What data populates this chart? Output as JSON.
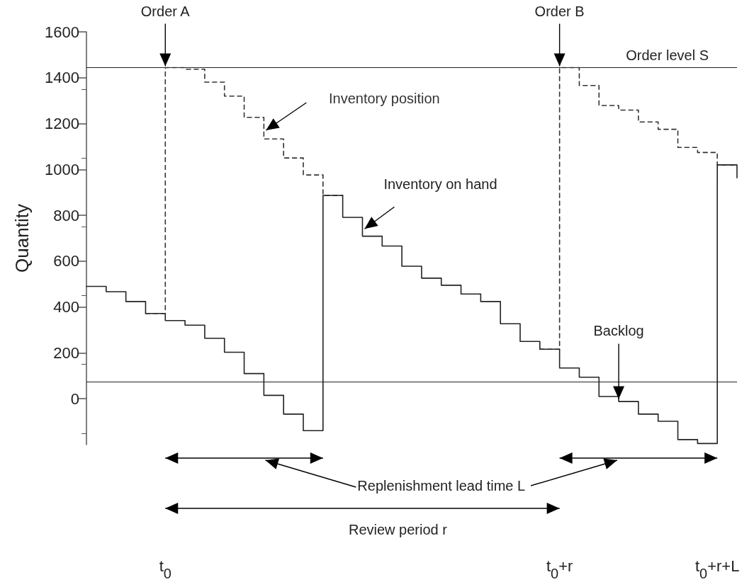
{
  "chart_data": {
    "type": "step",
    "ylabel": "Quantity",
    "categories": [
      null,
      null,
      null,
      null,
      "t$_{0}$",
      null,
      null,
      null,
      null,
      null,
      null,
      null,
      null,
      null,
      null,
      null,
      null,
      null,
      null,
      null,
      null,
      null,
      null,
      null,
      "t$_{0}$+r",
      null,
      null,
      null,
      null,
      null,
      null,
      null,
      "t$_{0}$+r+L",
      null
    ],
    "ylim": [
      -200,
      1600
    ],
    "yticks": [
      0,
      200,
      400,
      600,
      800,
      1000,
      1200,
      1400,
      1600
    ],
    "series": [
      {
        "name": "Inventory on hand",
        "color": "#222222",
        "line_style": "solid",
        "values": [
          490,
          467,
          424,
          372,
          341,
          321,
          264,
          203,
          110,
          15,
          -67,
          -139,
          887,
          791,
          709,
          666,
          578,
          526,
          495,
          457,
          424,
          327,
          250,
          216,
          134,
          94,
          10,
          -12,
          -67,
          -98,
          -178,
          -195,
          1020,
          963
        ]
      },
      {
        "name": "Inventory position",
        "color": "#333333",
        "line_style": "dashed",
        "values": [
          null,
          null,
          null,
          372,
          1444,
          1437,
          1381,
          1320,
          1227,
          1133,
          1050,
          976,
          887,
          null,
          null,
          null,
          null,
          null,
          null,
          null,
          null,
          null,
          null,
          216,
          1444,
          1366,
          1279,
          1259,
          1207,
          1175,
          1096,
          1074,
          1020,
          1020
        ]
      }
    ],
    "ref_lines": [
      {
        "axis": "y",
        "value": 1444,
        "label": "Order level S",
        "color": "#222222"
      },
      {
        "axis": "y",
        "value": 74,
        "color": "#222222"
      }
    ],
    "annotations": [
      {
        "text": "Order A",
        "x": "t$_{0}$",
        "y": 1444
      },
      {
        "text": "Order B",
        "x": "t$_{0}$+r",
        "y": 1444
      },
      "Replenishment lead time L",
      "Review period r",
      {
        "text": "Backlog",
        "y": -1
      }
    ],
    "grid": false,
    "legend": false
  }
}
